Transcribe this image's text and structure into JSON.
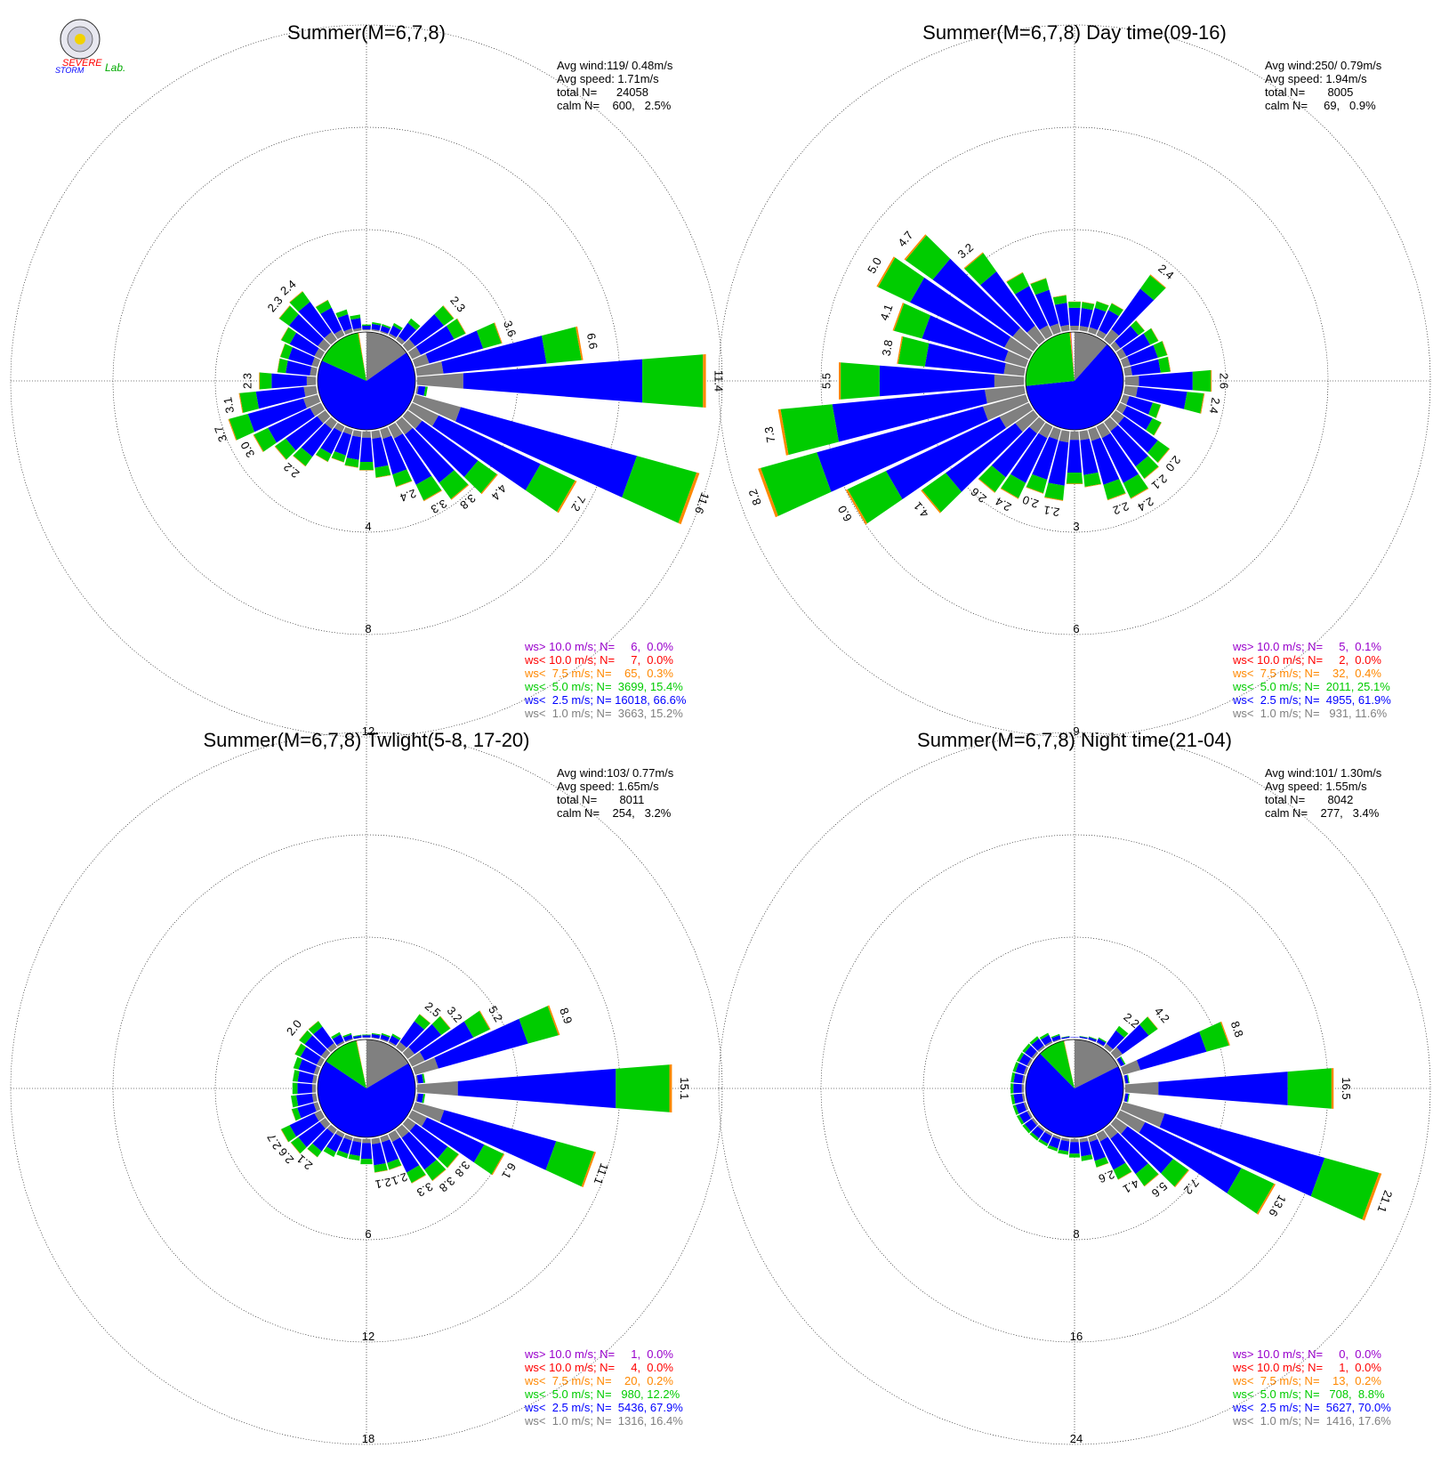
{
  "logo": {
    "line1": "SEVERE",
    "line2": "STORM",
    "line3": "Lab."
  },
  "colors": {
    "calm": "#808080",
    "lt1": "#808080",
    "lt2_5": "#0000ff",
    "lt5": "#00cc00",
    "lt7_5": "#ff8800",
    "lt10": "#ff0000",
    "gt10": "#9900cc",
    "grid": "#000000"
  },
  "chart_data": [
    {
      "type": "wind-rose",
      "title": "Summer(M=6,7,8)",
      "stats": [
        "Avg wind:119/ 0.48m/s",
        "Avg speed: 1.71m/s",
        "total N=      24058",
        "calm N=    600,   2.5%"
      ],
      "legend": [
        {
          "text": "ws> 10.0 m/s; N=     6,  0.0%",
          "key": "gt10"
        },
        {
          "text": "ws< 10.0 m/s; N=     7,  0.0%",
          "key": "lt10"
        },
        {
          "text": "ws<  7.5 m/s; N=    65,  0.3%",
          "key": "lt7_5"
        },
        {
          "text": "ws<  5.0 m/s; N=  3699, 15.4%",
          "key": "lt5"
        },
        {
          "text": "ws<  2.5 m/s; N= 16018, 66.6%",
          "key": "lt2_5"
        },
        {
          "text": "ws<  1.0 m/s; N=  3663, 15.2%",
          "key": "lt1"
        }
      ],
      "rings": [
        4,
        8,
        12
      ],
      "calm_percent": 2.5,
      "pie": [
        15.2,
        66.6,
        15.4,
        0.3,
        0.0,
        0.0
      ],
      "sectors": [
        {
          "dir": 0,
          "value": 0.3
        },
        {
          "dir": 10,
          "value": 0.4
        },
        {
          "dir": 20,
          "value": 0.4
        },
        {
          "dir": 30,
          "value": 0.6
        },
        {
          "dir": 40,
          "value": 1.1
        },
        {
          "dir": 50,
          "value": 2.3,
          "label": "2.3"
        },
        {
          "dir": 60,
          "value": 2.4
        },
        {
          "dir": 70,
          "value": 3.6,
          "label": "3.6"
        },
        {
          "dir": 80,
          "value": 6.6,
          "label": "6.6"
        },
        {
          "dir": 90,
          "value": 11.4,
          "label": "11.4"
        },
        {
          "dir": 100,
          "value": 0.5
        },
        {
          "dir": 110,
          "value": 11.6,
          "label": "11.6"
        },
        {
          "dir": 120,
          "value": 7.2,
          "label": "7.2"
        },
        {
          "dir": 130,
          "value": 4.4,
          "label": "4.4"
        },
        {
          "dir": 140,
          "value": 3.8,
          "label": "3.8"
        },
        {
          "dir": 150,
          "value": 3.3,
          "label": "3.3"
        },
        {
          "dir": 160,
          "value": 2.4,
          "label": "2.4"
        },
        {
          "dir": 170,
          "value": 1.9
        },
        {
          "dir": 180,
          "value": 1.6
        },
        {
          "dir": 190,
          "value": 1.5
        },
        {
          "dir": 200,
          "value": 1.4
        },
        {
          "dir": 210,
          "value": 1.6
        },
        {
          "dir": 220,
          "value": 2.2,
          "label": "2.2"
        },
        {
          "dir": 230,
          "value": 2.5
        },
        {
          "dir": 240,
          "value": 3.0,
          "label": "3.0"
        },
        {
          "dir": 250,
          "value": 3.7,
          "label": "3.7"
        },
        {
          "dir": 260,
          "value": 3.1,
          "label": "3.1"
        },
        {
          "dir": 270,
          "value": 2.3,
          "label": "2.3"
        },
        {
          "dir": 280,
          "value": 1.6
        },
        {
          "dir": 290,
          "value": 1.6
        },
        {
          "dir": 300,
          "value": 1.8
        },
        {
          "dir": 310,
          "value": 2.3,
          "label": "2.3"
        },
        {
          "dir": 320,
          "value": 2.4,
          "label": "2.4"
        },
        {
          "dir": 330,
          "value": 1.6
        },
        {
          "dir": 340,
          "value": 1.0
        },
        {
          "dir": 350,
          "value": 0.7
        }
      ]
    },
    {
      "type": "wind-rose",
      "title": "Summer(M=6,7,8) Day time(09-16)",
      "stats": [
        "Avg wind:250/ 0.79m/s",
        "Avg speed: 1.94m/s",
        "total N=       8005",
        "calm N=     69,   0.9%"
      ],
      "legend": [
        {
          "text": "ws> 10.0 m/s; N=     5,  0.1%",
          "key": "gt10"
        },
        {
          "text": "ws< 10.0 m/s; N=     2,  0.0%",
          "key": "lt10"
        },
        {
          "text": "ws<  7.5 m/s; N=    32,  0.4%",
          "key": "lt7_5"
        },
        {
          "text": "ws<  5.0 m/s; N=  2011, 25.1%",
          "key": "lt5"
        },
        {
          "text": "ws<  2.5 m/s; N=  4955, 61.9%",
          "key": "lt2_5"
        },
        {
          "text": "ws<  1.0 m/s; N=   931, 11.6%",
          "key": "lt1"
        }
      ],
      "rings": [
        3,
        6,
        9
      ],
      "calm_percent": 0.9,
      "pie": [
        11.6,
        61.9,
        25.1,
        0.4,
        0.0,
        0.1
      ],
      "sectors": [
        {
          "dir": 0,
          "value": 0.9
        },
        {
          "dir": 10,
          "value": 0.9
        },
        {
          "dir": 20,
          "value": 1.0
        },
        {
          "dir": 30,
          "value": 1.1
        },
        {
          "dir": 40,
          "value": 2.4,
          "label": "2.4"
        },
        {
          "dir": 50,
          "value": 1.1
        },
        {
          "dir": 60,
          "value": 1.3
        },
        {
          "dir": 70,
          "value": 1.4
        },
        {
          "dir": 80,
          "value": 1.4
        },
        {
          "dir": 90,
          "value": 2.6,
          "label": "2.6"
        },
        {
          "dir": 100,
          "value": 2.4,
          "label": "2.4"
        },
        {
          "dir": 110,
          "value": 1.2
        },
        {
          "dir": 120,
          "value": 1.4
        },
        {
          "dir": 130,
          "value": 2.0,
          "label": "2.0"
        },
        {
          "dir": 140,
          "value": 2.1,
          "label": "2.1"
        },
        {
          "dir": 150,
          "value": 2.4,
          "label": "2.4"
        },
        {
          "dir": 160,
          "value": 2.2,
          "label": "2.2"
        },
        {
          "dir": 170,
          "value": 1.7
        },
        {
          "dir": 180,
          "value": 1.6
        },
        {
          "dir": 190,
          "value": 2.1,
          "label": "2.1"
        },
        {
          "dir": 200,
          "value": 2.0,
          "label": "2.0"
        },
        {
          "dir": 210,
          "value": 2.4,
          "label": "2.4"
        },
        {
          "dir": 220,
          "value": 2.6,
          "label": "2.6"
        },
        {
          "dir": 230,
          "value": 4.1,
          "label": "4.1"
        },
        {
          "dir": 240,
          "value": 6.0,
          "label": "6.0"
        },
        {
          "dir": 250,
          "value": 8.2,
          "label": "8.2"
        },
        {
          "dir": 260,
          "value": 7.3,
          "label": "7.3"
        },
        {
          "dir": 270,
          "value": 5.5,
          "label": "5.5"
        },
        {
          "dir": 280,
          "value": 3.8,
          "label": "3.8"
        },
        {
          "dir": 290,
          "value": 4.1,
          "label": "4.1"
        },
        {
          "dir": 300,
          "value": 5.0,
          "label": "5.0"
        },
        {
          "dir": 310,
          "value": 4.7,
          "label": "4.7"
        },
        {
          "dir": 320,
          "value": 3.2,
          "label": "3.2"
        },
        {
          "dir": 330,
          "value": 2.1
        },
        {
          "dir": 340,
          "value": 1.7
        },
        {
          "dir": 350,
          "value": 1.1
        }
      ]
    },
    {
      "type": "wind-rose",
      "title": "Summer(M=6,7,8) Twlight(5-8, 17-20)",
      "stats": [
        "Avg wind:103/ 0.77m/s",
        "Avg speed: 1.65m/s",
        "total N=       8011",
        "calm N=    254,   3.2%"
      ],
      "legend": [
        {
          "text": "ws> 10.0 m/s; N=     1,  0.0%",
          "key": "gt10"
        },
        {
          "text": "ws< 10.0 m/s; N=     4,  0.0%",
          "key": "lt10"
        },
        {
          "text": "ws<  7.5 m/s; N=    20,  0.2%",
          "key": "lt7_5"
        },
        {
          "text": "ws<  5.0 m/s; N=   980, 12.2%",
          "key": "lt5"
        },
        {
          "text": "ws<  2.5 m/s; N=  5436, 67.9%",
          "key": "lt2_5"
        },
        {
          "text": "ws<  1.0 m/s; N=  1316, 16.4%",
          "key": "lt1"
        }
      ],
      "rings": [
        6,
        12,
        18
      ],
      "calm_percent": 3.2,
      "pie": [
        16.4,
        67.9,
        12.2,
        0.2,
        0.0,
        0.0
      ],
      "sectors": [
        {
          "dir": 0,
          "value": 0.3
        },
        {
          "dir": 10,
          "value": 0.4
        },
        {
          "dir": 20,
          "value": 0.5
        },
        {
          "dir": 30,
          "value": 0.7
        },
        {
          "dir": 40,
          "value": 2.5,
          "label": "2.5"
        },
        {
          "dir": 50,
          "value": 3.2,
          "label": "3.2"
        },
        {
          "dir": 60,
          "value": 5.2,
          "label": "5.2"
        },
        {
          "dir": 70,
          "value": 8.9,
          "label": "8.9"
        },
        {
          "dir": 80,
          "value": 0.6
        },
        {
          "dir": 90,
          "value": 15.1,
          "label": "15.1"
        },
        {
          "dir": 100,
          "value": 0.6
        },
        {
          "dir": 110,
          "value": 11.1,
          "label": "11.1"
        },
        {
          "dir": 120,
          "value": 6.1,
          "label": "6.1"
        },
        {
          "dir": 130,
          "value": 3.8,
          "label": "3.8"
        },
        {
          "dir": 140,
          "value": 3.8,
          "label": "3.8"
        },
        {
          "dir": 150,
          "value": 3.3,
          "label": "3.3"
        },
        {
          "dir": 160,
          "value": 2.1,
          "label": "2.1"
        },
        {
          "dir": 170,
          "value": 2.1,
          "label": "2.1"
        },
        {
          "dir": 180,
          "value": 1.6
        },
        {
          "dir": 190,
          "value": 1.4
        },
        {
          "dir": 200,
          "value": 1.4
        },
        {
          "dir": 210,
          "value": 1.6
        },
        {
          "dir": 220,
          "value": 2.1,
          "label": "2.1"
        },
        {
          "dir": 230,
          "value": 2.6,
          "label": "2.6"
        },
        {
          "dir": 240,
          "value": 2.7,
          "label": "2.7"
        },
        {
          "dir": 250,
          "value": 1.7
        },
        {
          "dir": 260,
          "value": 1.6
        },
        {
          "dir": 270,
          "value": 1.5
        },
        {
          "dir": 280,
          "value": 1.5
        },
        {
          "dir": 290,
          "value": 1.6
        },
        {
          "dir": 300,
          "value": 1.8
        },
        {
          "dir": 310,
          "value": 2.0,
          "label": "2.0"
        },
        {
          "dir": 320,
          "value": 2.0
        },
        {
          "dir": 330,
          "value": 0.8
        },
        {
          "dir": 340,
          "value": 0.5
        },
        {
          "dir": 350,
          "value": 0.3
        }
      ]
    },
    {
      "type": "wind-rose",
      "title": "Summer(M=6,7,8) Night time(21-04)",
      "stats": [
        "Avg wind:101/ 1.30m/s",
        "Avg speed: 1.55m/s",
        "total N=       8042",
        "calm N=    277,   3.4%"
      ],
      "legend": [
        {
          "text": "ws> 10.0 m/s; N=     0,  0.0%",
          "key": "gt10"
        },
        {
          "text": "ws< 10.0 m/s; N=     1,  0.0%",
          "key": "lt10"
        },
        {
          "text": "ws<  7.5 m/s; N=    13,  0.2%",
          "key": "lt7_5"
        },
        {
          "text": "ws<  5.0 m/s; N=   708,  8.8%",
          "key": "lt5"
        },
        {
          "text": "ws<  2.5 m/s; N=  5627, 70.0%",
          "key": "lt2_5"
        },
        {
          "text": "ws<  1.0 m/s; N=  1416, 17.6%",
          "key": "lt1"
        }
      ],
      "rings": [
        8,
        16,
        24
      ],
      "calm_percent": 3.4,
      "pie": [
        17.6,
        70.0,
        8.8,
        0.2,
        0.0,
        0.0
      ],
      "sectors": [
        {
          "dir": 0,
          "value": 0.2
        },
        {
          "dir": 10,
          "value": 0.3
        },
        {
          "dir": 20,
          "value": 0.4
        },
        {
          "dir": 30,
          "value": 0.6
        },
        {
          "dir": 40,
          "value": 2.2,
          "label": "2.2"
        },
        {
          "dir": 50,
          "value": 4.2,
          "label": "4.2"
        },
        {
          "dir": 60,
          "value": 0.6
        },
        {
          "dir": 70,
          "value": 8.8,
          "label": "8.8"
        },
        {
          "dir": 80,
          "value": 0.5
        },
        {
          "dir": 90,
          "value": 16.5,
          "label": "16.5"
        },
        {
          "dir": 100,
          "value": 0.5
        },
        {
          "dir": 110,
          "value": 21.1,
          "label": "21.1"
        },
        {
          "dir": 120,
          "value": 13.6,
          "label": "13.6"
        },
        {
          "dir": 130,
          "value": 7.2,
          "label": "7.2"
        },
        {
          "dir": 140,
          "value": 5.6,
          "label": "5.6"
        },
        {
          "dir": 150,
          "value": 4.1,
          "label": "4.1"
        },
        {
          "dir": 160,
          "value": 2.6,
          "label": "2.6"
        },
        {
          "dir": 170,
          "value": 1.9
        },
        {
          "dir": 180,
          "value": 1.6
        },
        {
          "dir": 190,
          "value": 1.4
        },
        {
          "dir": 200,
          "value": 1.3
        },
        {
          "dir": 210,
          "value": 1.2
        },
        {
          "dir": 220,
          "value": 1.2
        },
        {
          "dir": 230,
          "value": 1.2
        },
        {
          "dir": 240,
          "value": 1.2
        },
        {
          "dir": 250,
          "value": 1.2
        },
        {
          "dir": 260,
          "value": 1.2
        },
        {
          "dir": 270,
          "value": 1.2
        },
        {
          "dir": 280,
          "value": 1.2
        },
        {
          "dir": 290,
          "value": 1.2
        },
        {
          "dir": 300,
          "value": 1.2
        },
        {
          "dir": 310,
          "value": 1.2
        },
        {
          "dir": 320,
          "value": 1.2
        },
        {
          "dir": 330,
          "value": 1.0
        },
        {
          "dir": 340,
          "value": 0.6
        },
        {
          "dir": 350,
          "value": 0.3
        }
      ]
    }
  ]
}
